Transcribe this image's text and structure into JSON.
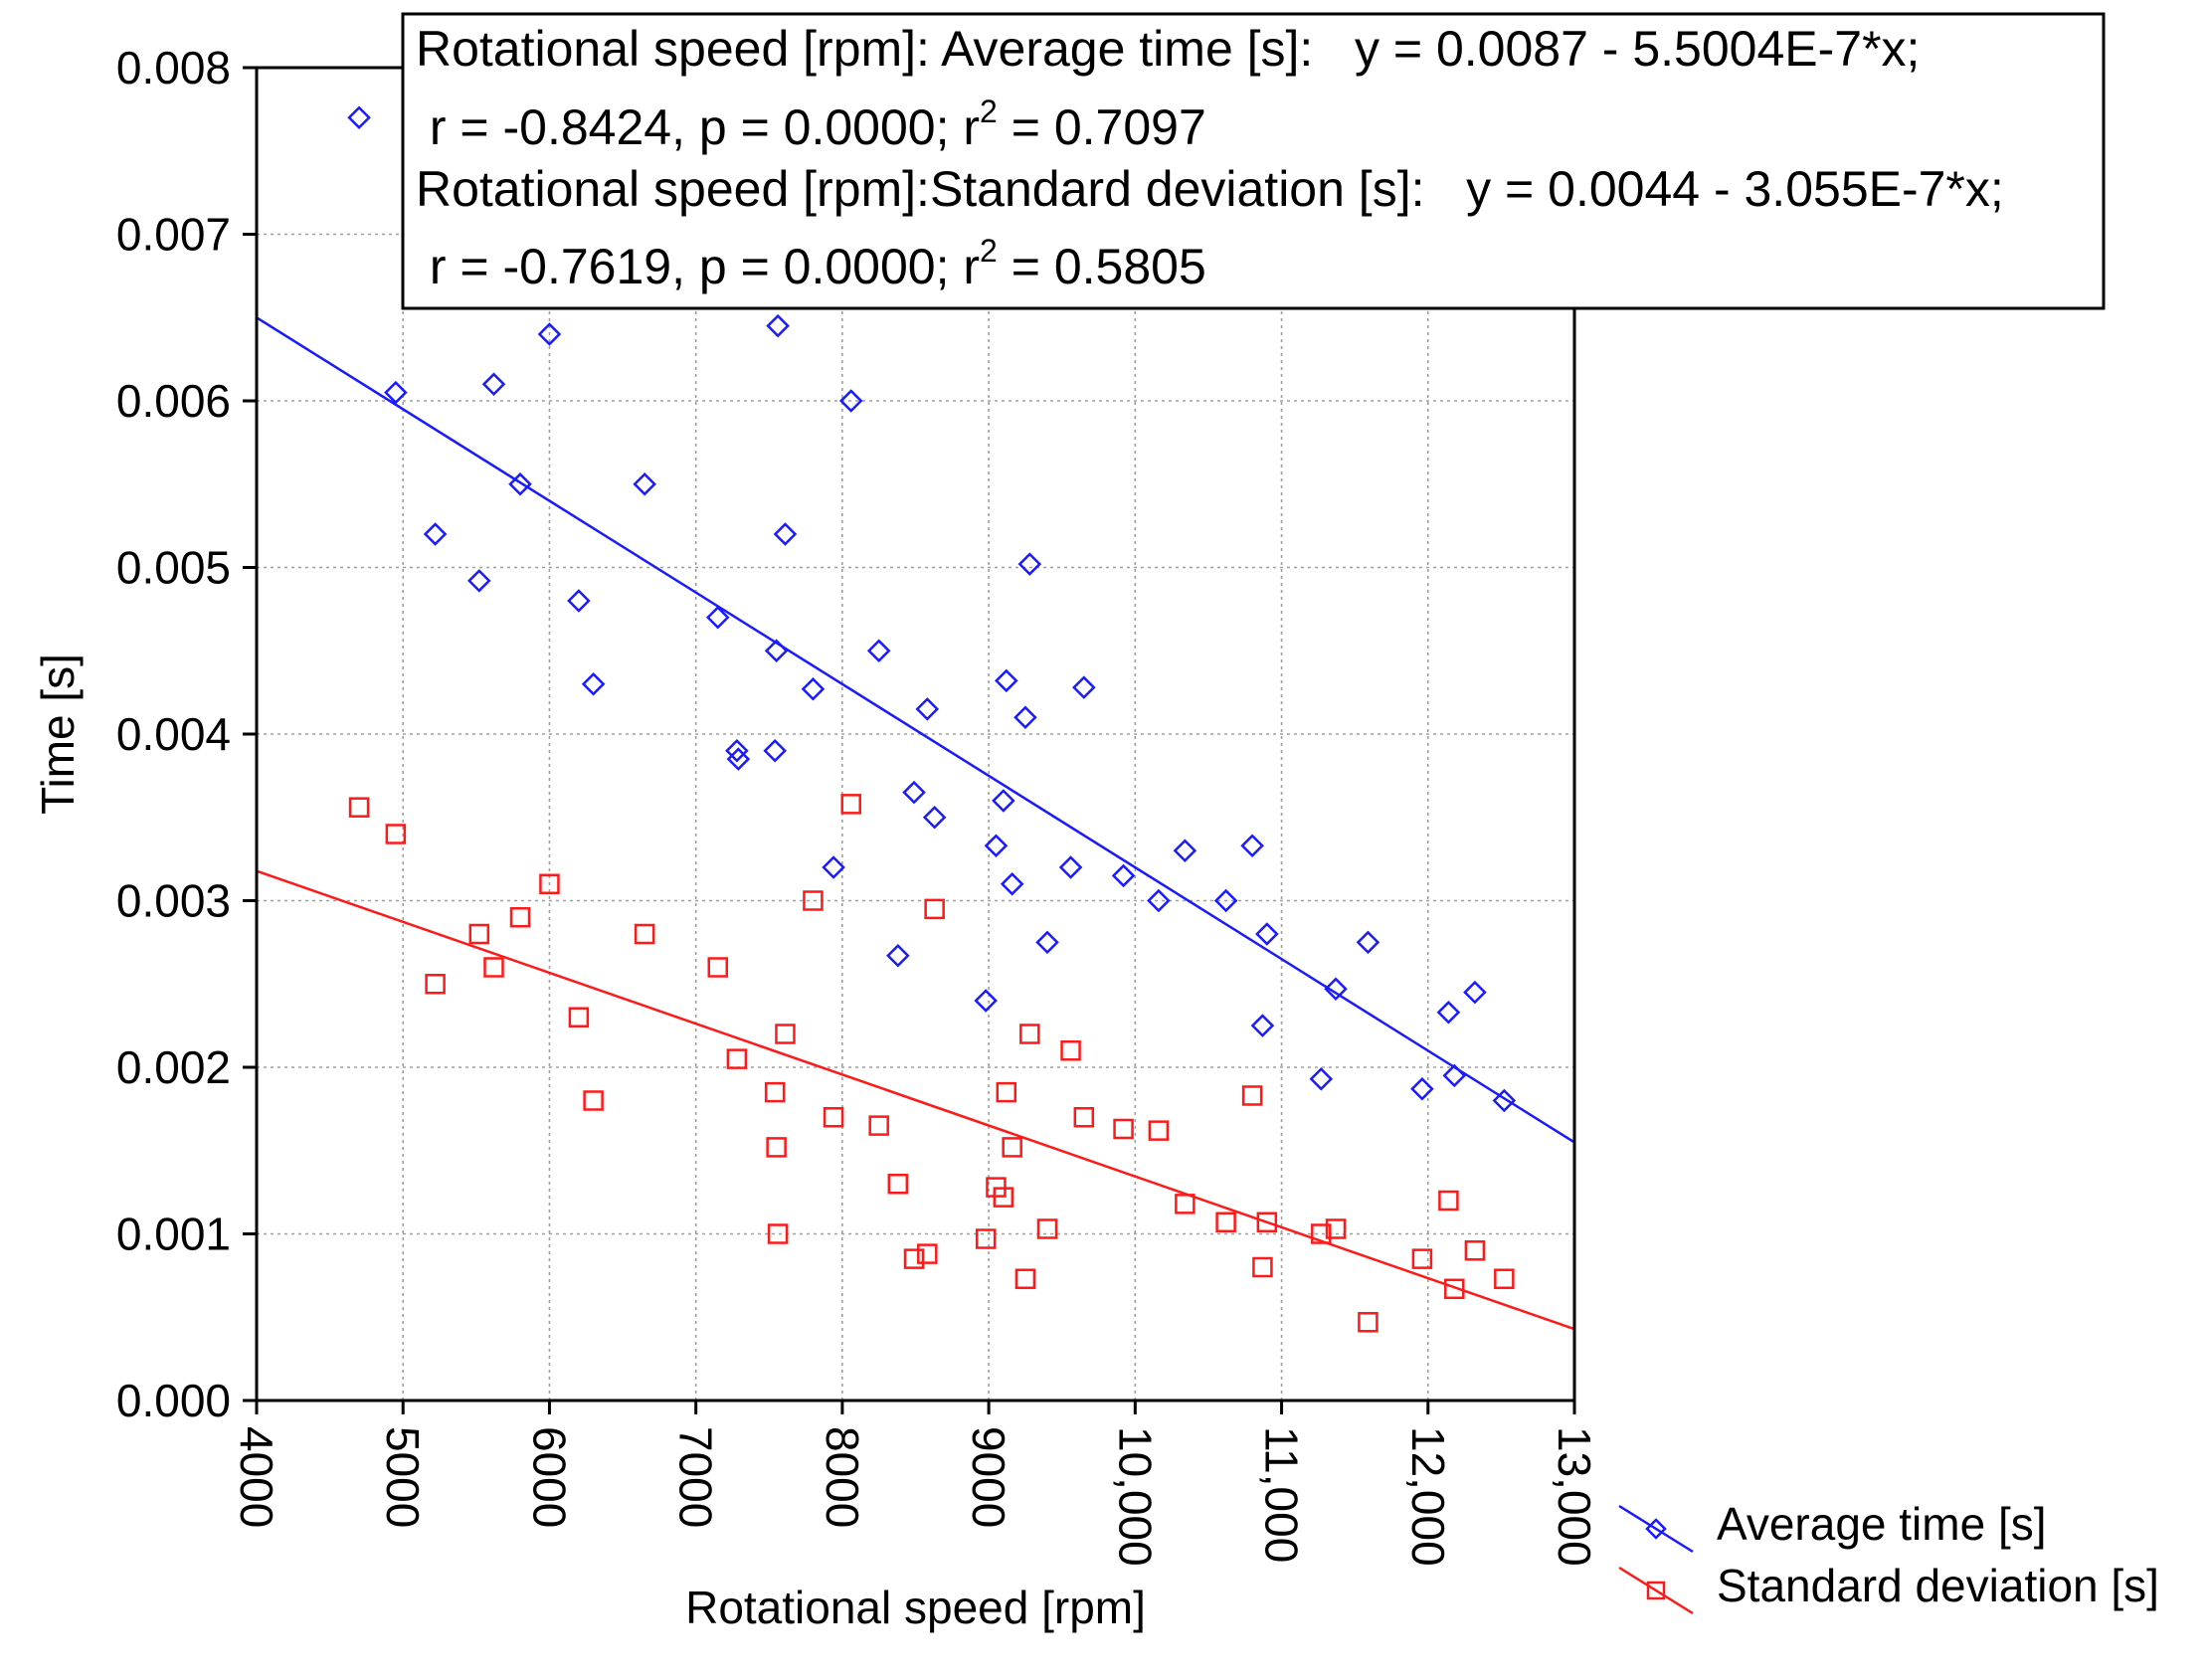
{
  "chart_data": {
    "type": "scatter",
    "xlabel": "Rotational speed [rpm]",
    "ylabel": "Time [s]",
    "xlim": [
      4000,
      13000
    ],
    "ylim": [
      0.0,
      0.008
    ],
    "x_ticks": [
      4000,
      5000,
      6000,
      7000,
      8000,
      9000,
      10000,
      11000,
      12000,
      13000
    ],
    "x_tick_labels": [
      "4000",
      "5000",
      "6000",
      "7000",
      "8000",
      "9000",
      "10,000",
      "11,000",
      "12,000",
      "13,000"
    ],
    "y_ticks": [
      0.0,
      0.001,
      0.002,
      0.003,
      0.004,
      0.005,
      0.006,
      0.007,
      0.008
    ],
    "y_tick_labels": [
      "0.000",
      "0.001",
      "0.002",
      "0.003",
      "0.004",
      "0.005",
      "0.006",
      "0.007",
      "0.008"
    ],
    "grid": true,
    "legend_position": "bottom-right, outside plot",
    "series": [
      {
        "name": "Average time [s]",
        "marker": "diamond",
        "color": "#1a1aff",
        "fit": {
          "intercept": 0.0087,
          "slope": -5.5004e-07
        },
        "points": [
          [
            4700,
            0.0077
          ],
          [
            4950,
            0.00605
          ],
          [
            5220,
            0.0052
          ],
          [
            5520,
            0.00492
          ],
          [
            5620,
            0.0061
          ],
          [
            5800,
            0.0055
          ],
          [
            6000,
            0.0064
          ],
          [
            6200,
            0.0048
          ],
          [
            6300,
            0.0043
          ],
          [
            6650,
            0.0055
          ],
          [
            7150,
            0.0047
          ],
          [
            7280,
            0.0039
          ],
          [
            7290,
            0.00385
          ],
          [
            7540,
            0.0039
          ],
          [
            7550,
            0.0045
          ],
          [
            7560,
            0.00645
          ],
          [
            7610,
            0.0052
          ],
          [
            7800,
            0.00427
          ],
          [
            7940,
            0.0032
          ],
          [
            8060,
            0.006
          ],
          [
            8250,
            0.0045
          ],
          [
            8380,
            0.00267
          ],
          [
            8490,
            0.00365
          ],
          [
            8580,
            0.00415
          ],
          [
            8630,
            0.0035
          ],
          [
            8980,
            0.0024
          ],
          [
            9050,
            0.00333
          ],
          [
            9100,
            0.0036
          ],
          [
            9120,
            0.00432
          ],
          [
            9160,
            0.0031
          ],
          [
            9250,
            0.0041
          ],
          [
            9280,
            0.00502
          ],
          [
            9400,
            0.00275
          ],
          [
            9560,
            0.0032
          ],
          [
            9650,
            0.00428
          ],
          [
            9920,
            0.00315
          ],
          [
            10160,
            0.003
          ],
          [
            10340,
            0.0033
          ],
          [
            10620,
            0.003
          ],
          [
            10800,
            0.00333
          ],
          [
            10870,
            0.00225
          ],
          [
            10900,
            0.0028
          ],
          [
            11270,
            0.00193
          ],
          [
            11370,
            0.00247
          ],
          [
            11590,
            0.00275
          ],
          [
            11960,
            0.00187
          ],
          [
            12140,
            0.00233
          ],
          [
            12180,
            0.00195
          ],
          [
            12320,
            0.00245
          ],
          [
            12520,
            0.0018
          ]
        ]
      },
      {
        "name": "Standard deviation [s]",
        "marker": "square",
        "color": "#ff1a1a",
        "fit": {
          "intercept": 0.0044,
          "slope": -3.055e-07
        },
        "points": [
          [
            4700,
            0.00356
          ],
          [
            4950,
            0.0034
          ],
          [
            5220,
            0.0025
          ],
          [
            5520,
            0.0028
          ],
          [
            5620,
            0.0026
          ],
          [
            5800,
            0.0029
          ],
          [
            6000,
            0.0031
          ],
          [
            6200,
            0.0023
          ],
          [
            6300,
            0.0018
          ],
          [
            6650,
            0.0028
          ],
          [
            7150,
            0.0026
          ],
          [
            7280,
            0.00205
          ],
          [
            7540,
            0.00185
          ],
          [
            7550,
            0.00152
          ],
          [
            7560,
            0.001
          ],
          [
            7610,
            0.0022
          ],
          [
            7800,
            0.003
          ],
          [
            7940,
            0.0017
          ],
          [
            8060,
            0.00358
          ],
          [
            8250,
            0.00165
          ],
          [
            8380,
            0.0013
          ],
          [
            8490,
            0.00085
          ],
          [
            8580,
            0.00088
          ],
          [
            8630,
            0.00295
          ],
          [
            8980,
            0.00097
          ],
          [
            9050,
            0.00128
          ],
          [
            9100,
            0.00122
          ],
          [
            9120,
            0.00185
          ],
          [
            9160,
            0.00152
          ],
          [
            9250,
            0.00073
          ],
          [
            9280,
            0.0022
          ],
          [
            9400,
            0.00103
          ],
          [
            9560,
            0.0021
          ],
          [
            9650,
            0.0017
          ],
          [
            9920,
            0.00163
          ],
          [
            10160,
            0.00162
          ],
          [
            10340,
            0.00118
          ],
          [
            10620,
            0.00107
          ],
          [
            10800,
            0.00183
          ],
          [
            10870,
            0.0008
          ],
          [
            10900,
            0.00107
          ],
          [
            11270,
            0.001
          ],
          [
            11370,
            0.00103
          ],
          [
            11590,
            0.00047
          ],
          [
            11960,
            0.00085
          ],
          [
            12140,
            0.0012
          ],
          [
            12180,
            0.00067
          ],
          [
            12320,
            0.0009
          ],
          [
            12520,
            0.00073
          ]
        ]
      }
    ],
    "stats_box": {
      "line1": "Rotational speed [rpm]: Average time [s]:   y = 0.0087 - 5.5004E-7*x;",
      "line2_pre": " r = -0.8424, p = 0.0000; r",
      "line2_sup": "2",
      "line2_post": " = 0.7097",
      "line3": "Rotational speed [rpm]:Standard deviation [s]:   y = 0.0044 - 3.055E-7*x;",
      "line4_pre": " r = -0.7619, p = 0.0000; r",
      "line4_sup": "2",
      "line4_post": " = 0.5805"
    }
  }
}
